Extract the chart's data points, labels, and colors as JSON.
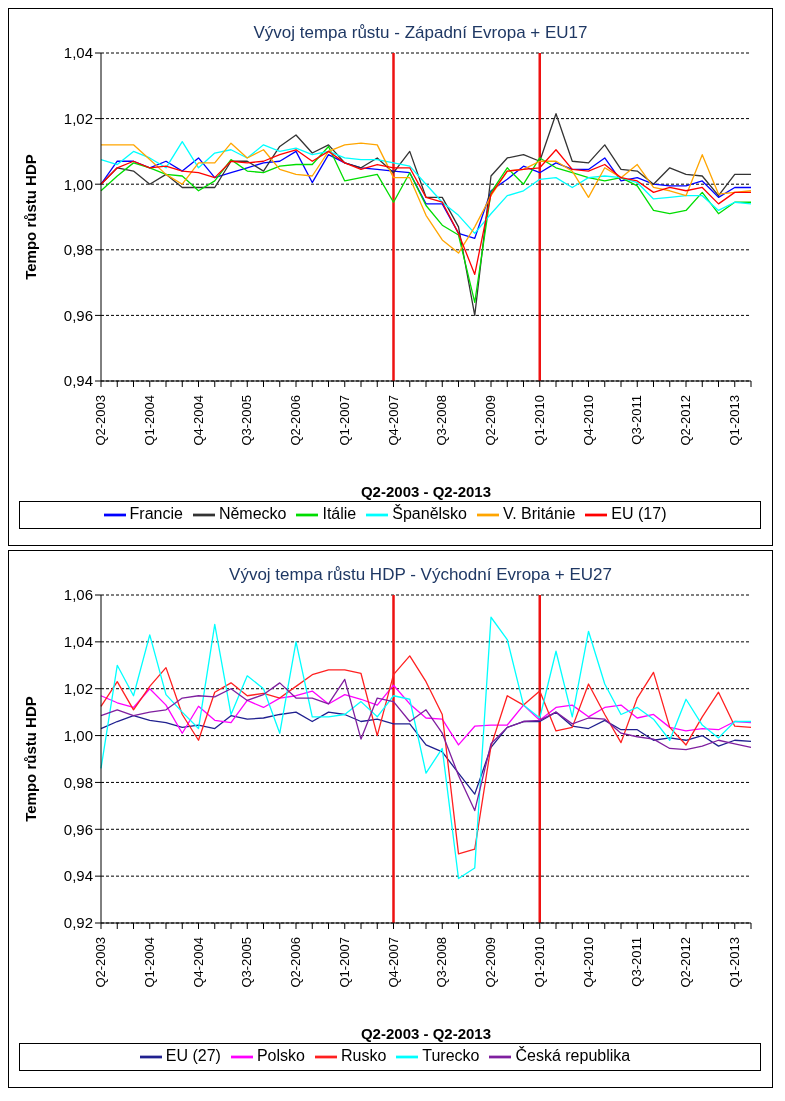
{
  "chart_data": [
    {
      "type": "line",
      "title": "Vývoj  tempa růstu - Západní  Evropa + EU17",
      "xlabel": "Q2-2003  - Q2-2013",
      "ylabel": "Tempo růstu HDP",
      "categories": [
        "Q2-2003",
        null,
        null,
        "Q1-2004",
        null,
        null,
        "Q4-2004",
        null,
        null,
        "Q3-2005",
        null,
        null,
        "Q2-2006",
        null,
        null,
        "Q1-2007",
        null,
        null,
        "Q4-2007",
        null,
        null,
        "Q3-2008",
        null,
        null,
        "Q2-2009",
        null,
        null,
        "Q1-2010",
        null,
        null,
        "Q4-2010",
        null,
        null,
        "Q3-2011",
        null,
        null,
        "Q2-2012",
        null,
        null,
        "Q1-2013",
        null
      ],
      "series": [
        {
          "name": "Francie",
          "color": "#0000ff",
          "values": [
            1.0,
            1.007,
            1.007,
            1.005,
            1.007,
            1.004,
            1.008,
            1.002,
            1.0035,
            1.005,
            1.0065,
            1.007,
            1.01,
            1.0005,
            1.009,
            1.0065,
            1.005,
            1.0045,
            1.004,
            1.0035,
            0.994,
            0.994,
            0.985,
            0.9835,
            0.998,
            1.0015,
            1.0055,
            1.0035,
            1.0065,
            1.0045,
            1.0045,
            1.008,
            1.001,
            1.002,
            1.0,
            0.9995,
            0.9995,
            1.001,
            0.996,
            0.999,
            0.999
          ]
        },
        {
          "name": "Německo",
          "color": "#333333",
          "values": [
            1.0,
            1.005,
            1.004,
            1.0,
            1.003,
            0.999,
            0.999,
            0.999,
            1.007,
            1.007,
            1.004,
            1.0115,
            1.015,
            1.0095,
            1.012,
            1.0065,
            1.005,
            1.008,
            1.0035,
            1.01,
            0.996,
            0.996,
            0.987,
            0.96,
            1.0025,
            1.008,
            1.009,
            1.007,
            1.0215,
            1.007,
            1.0065,
            1.012,
            1.0045,
            1.004,
            1.0,
            1.005,
            1.003,
            1.0025,
            0.9965,
            1.003,
            1.003
          ]
        },
        {
          "name": "Itálie",
          "color": "#00dd00",
          "values": [
            0.998,
            1.0025,
            1.0065,
            1.005,
            1.003,
            1.0025,
            0.998,
            1.001,
            1.0075,
            1.004,
            1.0035,
            1.0055,
            1.006,
            1.006,
            1.0115,
            1.001,
            1.002,
            1.003,
            0.9945,
            1.0035,
            0.9935,
            0.9875,
            0.9845,
            0.964,
            0.9975,
            1.005,
            1.0,
            1.008,
            1.005,
            1.0035,
            1.002,
            1.001,
            1.002,
            0.9995,
            0.992,
            0.991,
            0.992,
            0.9975,
            0.991,
            0.9945,
            0.9945
          ]
        },
        {
          "name": "Španělsko",
          "color": "#00ffff",
          "values": [
            1.0075,
            1.006,
            1.01,
            1.008,
            1.005,
            1.013,
            1.005,
            1.0095,
            1.0105,
            1.008,
            1.012,
            1.01,
            1.011,
            1.009,
            1.01,
            1.008,
            1.0075,
            1.0075,
            1.0065,
            1.0055,
            1.0,
            0.9945,
            0.9905,
            0.985,
            0.991,
            0.9965,
            0.998,
            1.0015,
            1.002,
            0.999,
            1.002,
            1.0025,
            1.002,
            1.0005,
            0.9955,
            0.996,
            0.9965,
            0.9965,
            0.992,
            0.9945,
            0.994
          ]
        },
        {
          "name": "V. Británie",
          "color": "#ffa500",
          "values": [
            1.012,
            1.012,
            1.012,
            1.0075,
            1.003,
            1.0,
            1.0065,
            1.0065,
            1.0125,
            1.008,
            1.0105,
            1.0045,
            1.003,
            1.0025,
            1.01,
            1.012,
            1.0125,
            1.012,
            1.002,
            1.002,
            0.9905,
            0.983,
            0.979,
            0.987,
            0.9965,
            1.004,
            1.0045,
            1.007,
            1.007,
            1.004,
            0.996,
            1.005,
            1.002,
            1.006,
            0.999,
            0.998,
            0.9965,
            1.009,
            0.997,
            0.9975,
            0.998
          ]
        },
        {
          "name": "EU (17)",
          "color": "#ff0000",
          "values": [
            1.0,
            1.005,
            1.007,
            1.005,
            1.0055,
            1.004,
            1.0035,
            1.002,
            1.007,
            1.0065,
            1.007,
            1.009,
            1.0105,
            1.007,
            1.01,
            1.0065,
            1.0045,
            1.006,
            1.005,
            1.005,
            0.996,
            0.9945,
            0.985,
            0.9725,
            0.997,
            1.004,
            1.0045,
            1.005,
            1.0105,
            1.0045,
            1.004,
            1.006,
            1.002,
            1.001,
            0.9975,
            0.999,
            0.998,
            0.999,
            0.994,
            0.9975,
            0.9975
          ]
        }
      ],
      "ylim": [
        0.94,
        1.04
      ],
      "yticks": [
        {
          "value": 0.94,
          "label": "0,94"
        },
        {
          "value": 0.96,
          "label": "0,96"
        },
        {
          "value": 0.98,
          "label": "0,98"
        },
        {
          "value": 1.0,
          "label": "1,00"
        },
        {
          "value": 1.02,
          "label": "1,02"
        },
        {
          "value": 1.04,
          "label": "1,04"
        }
      ],
      "grid": "y",
      "legend": "bottom",
      "ref_lines": [
        {
          "axis": "x",
          "value": "Q4-2007",
          "color": "#ee1111"
        },
        {
          "axis": "x",
          "value": "Q1-2010",
          "color": "#ee1111"
        }
      ]
    },
    {
      "type": "line",
      "title": "Vývoj  tempa růstu HDP - Východní  Evropa + EU27",
      "xlabel": "Q2-2003  - Q2-2013",
      "ylabel": "Tempo růstu HDP",
      "categories": [
        "Q2-2003",
        null,
        null,
        "Q1-2004",
        null,
        null,
        "Q4-2004",
        null,
        null,
        "Q3-2005",
        null,
        null,
        "Q2-2006",
        null,
        null,
        "Q1-2007",
        null,
        null,
        "Q4-2007",
        null,
        null,
        "Q3-2008",
        null,
        null,
        "Q2-2009",
        null,
        null,
        "Q1-2010",
        null,
        null,
        "Q4-2010",
        null,
        null,
        "Q3-2011",
        null,
        null,
        "Q2-2012",
        null,
        null,
        "Q1-2013",
        null
      ],
      "series": [
        {
          "name": "EU (27)",
          "color": "#20208f",
          "values": [
            1.003,
            1.006,
            1.0085,
            1.0065,
            1.0055,
            1.0035,
            1.0045,
            1.003,
            1.0085,
            1.007,
            1.0075,
            1.009,
            1.01,
            1.006,
            1.01,
            1.009,
            1.006,
            1.007,
            1.005,
            1.005,
            0.996,
            0.993,
            0.984,
            0.975,
            0.995,
            1.0035,
            1.006,
            1.006,
            1.01,
            1.004,
            1.003,
            1.0065,
            1.0025,
            1.0025,
            0.998,
            0.999,
            0.998,
            1.0,
            0.9955,
            0.998,
            0.9975
          ]
        },
        {
          "name": "Polsko",
          "color": "#ff00ff",
          "values": [
            1.017,
            1.014,
            1.012,
            1.02,
            1.013,
            1.001,
            1.0125,
            1.0065,
            1.0055,
            1.015,
            1.012,
            1.016,
            1.017,
            1.019,
            1.0135,
            1.0175,
            1.0155,
            1.013,
            1.0215,
            1.0135,
            1.0075,
            1.007,
            0.996,
            1.004,
            1.0045,
            1.0045,
            1.013,
            1.0065,
            1.012,
            1.013,
            1.008,
            1.012,
            1.013,
            1.0075,
            1.009,
            1.0035,
            1.002,
            1.003,
            1.0025,
            1.006,
            1.0055
          ]
        },
        {
          "name": "Rusko",
          "color": "#ff2020",
          "values": [
            1.0125,
            1.023,
            1.011,
            1.021,
            1.029,
            1.009,
            0.998,
            1.0185,
            1.0225,
            1.017,
            1.018,
            1.016,
            1.021,
            1.026,
            1.028,
            1.028,
            1.0265,
            1.0,
            1.026,
            1.034,
            1.023,
            1.009,
            0.9495,
            0.9515,
            0.9955,
            1.017,
            1.013,
            1.019,
            1.002,
            1.0035,
            1.022,
            1.009,
            0.997,
            1.016,
            1.027,
            1.0035,
            0.996,
            1.008,
            1.0185,
            1.004,
            1.0035
          ]
        },
        {
          "name": "Turecko",
          "color": "#00ffff",
          "values": [
            0.986,
            1.03,
            1.017,
            1.043,
            1.0175,
            1.01,
            1.003,
            1.0475,
            1.009,
            1.0255,
            1.02,
            1.001,
            1.04,
            1.008,
            1.008,
            1.009,
            1.0145,
            1.008,
            1.017,
            1.0155,
            0.984,
            0.9945,
            0.939,
            0.9435,
            1.0505,
            1.041,
            1.013,
            1.0075,
            1.036,
            1.008,
            1.0445,
            1.022,
            1.009,
            1.012,
            1.007,
            0.998,
            1.0155,
            1.0045,
            0.999,
            1.006,
            1.006
          ]
        },
        {
          "name": "Česká republika",
          "color": "#7f1f9f",
          "values": [
            1.0085,
            1.011,
            1.0085,
            1.01,
            1.011,
            1.016,
            1.017,
            1.0165,
            1.02,
            1.015,
            1.0175,
            1.0225,
            1.016,
            1.016,
            1.0135,
            1.024,
            0.9985,
            1.016,
            1.0145,
            1.006,
            1.011,
            1.001,
            0.983,
            0.968,
            0.9965,
            1.0035,
            1.006,
            1.0065,
            1.01,
            1.005,
            1.0075,
            1.007,
            1.001,
            0.9995,
            0.9985,
            0.9945,
            0.994,
            0.9955,
            0.998,
            0.9965,
            0.995
          ]
        }
      ],
      "ylim": [
        0.92,
        1.06
      ],
      "yticks": [
        {
          "value": 0.92,
          "label": "0,92"
        },
        {
          "value": 0.94,
          "label": "0,94"
        },
        {
          "value": 0.96,
          "label": "0,96"
        },
        {
          "value": 0.98,
          "label": "0,98"
        },
        {
          "value": 1.0,
          "label": "1,00"
        },
        {
          "value": 1.02,
          "label": "1,02"
        },
        {
          "value": 1.04,
          "label": "1,04"
        },
        {
          "value": 1.06,
          "label": "1,06"
        }
      ],
      "grid": "y",
      "legend": "bottom",
      "ref_lines": [
        {
          "axis": "x",
          "value": "Q4-2007",
          "color": "#ee1111"
        },
        {
          "axis": "x",
          "value": "Q1-2010",
          "color": "#ee1111"
        }
      ]
    }
  ]
}
